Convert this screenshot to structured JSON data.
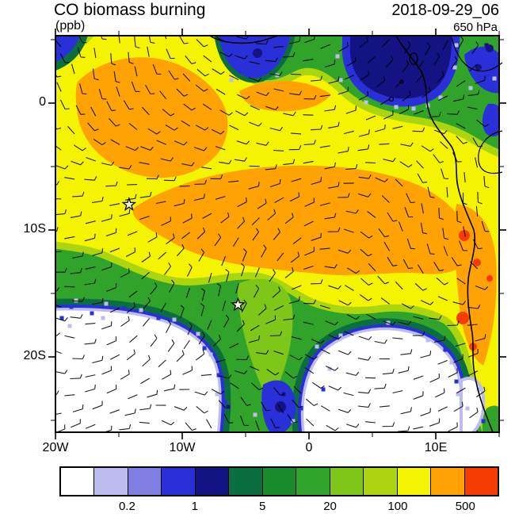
{
  "header": {
    "title": "CO biomass burning",
    "units": "(ppb)",
    "datetime": "2018-09-29_06",
    "level": "650 hPa"
  },
  "axes": {
    "x_ticks": [
      {
        "label": "20W",
        "lon": -20
      },
      {
        "label": "10W",
        "lon": -10
      },
      {
        "label": "0",
        "lon": 0
      },
      {
        "label": "10E",
        "lon": 10
      }
    ],
    "y_ticks": [
      {
        "label": "0",
        "lat": 0
      },
      {
        "label": "10S",
        "lat": -10
      },
      {
        "label": "20S",
        "lat": -20
      }
    ]
  },
  "colorbar": {
    "colors": [
      "#ffffff",
      "#bcbcee",
      "#7d7de2",
      "#2a30d8",
      "#131384",
      "#0b6e3f",
      "#188c2a",
      "#2fa32a",
      "#7ec718",
      "#abd60f",
      "#f4f402",
      "#ffa305",
      "#f53c02"
    ],
    "levels": [
      0.1,
      0.2,
      0.5,
      1,
      2,
      5,
      10,
      20,
      50,
      100,
      200,
      500
    ],
    "tick_labels": [
      "0.2",
      "1",
      "5",
      "20",
      "100",
      "500"
    ]
  },
  "chart_data": {
    "type": "heatmap",
    "title": "CO biomass burning",
    "units": "ppb",
    "pressure_level": "650 hPa",
    "valid_time": "2018-09-29_06",
    "x_axis": {
      "tick_labels": [
        "20W",
        "10W",
        "0",
        "10E"
      ],
      "lon_range_deg": [
        -20,
        15
      ]
    },
    "y_axis": {
      "tick_labels": [
        "0",
        "10S",
        "20S"
      ],
      "lat_range_deg": [
        5.3,
        -25.9
      ]
    },
    "contour_levels_ppb": [
      0.1,
      0.2,
      0.5,
      1,
      2,
      5,
      10,
      20,
      50,
      100,
      200,
      500
    ],
    "palette": [
      "#ffffff",
      "#bcbcee",
      "#7d7de2",
      "#2a30d8",
      "#131384",
      "#0b6e3f",
      "#188c2a",
      "#2fa32a",
      "#7ec718",
      "#abd60f",
      "#f4f402",
      "#ffa305",
      "#f53c02"
    ],
    "overlay": "wind barbs",
    "markers": [
      {
        "symbol": "star",
        "lon_deg": -14.2,
        "lat_deg": -8.0
      },
      {
        "symbol": "star",
        "lon_deg": -5.6,
        "lat_deg": -15.9
      }
    ],
    "features": [
      {
        "region": "northwest Atlantic quadrant 15W-5W, 3N-6S",
        "value_ppb": "100-500",
        "appearance": "orange core inside broad yellow field"
      },
      {
        "region": "central plume 14W-9E, 2S-13S reaching Angola coast",
        "value_ppb": "200-500",
        "appearance": "elongated orange band"
      },
      {
        "region": "Gulf of Guinea near 6E-12E, 0-5N",
        "value_ppb": "0.2-2",
        "appearance": "dark blue/navy minimum with blue fringe"
      },
      {
        "region": "top-centre near Ivory Coast/Ghana coast",
        "value_ppb": "0.5-2",
        "appearance": "small blue wedge"
      },
      {
        "region": "southwest ocean south of ~17S",
        "value_ppb": "<0.1",
        "appearance": "white with lavender/blue speckled rim and dark-green band"
      },
      {
        "region": "south-central ocean 0-8E south of ~18S",
        "value_ppb": "<0.1",
        "appearance": "white with blue fringe"
      },
      {
        "region": "green tongue near 4W-1E from 12S to 26S",
        "value_ppb": "2-20",
        "appearance": "green with dark-green edges and blue/navy at its southern tip"
      },
      {
        "region": "Angola coastal spots 8S-13S and 15S-19S",
        "value_ppb": ">500",
        "appearance": "small red patches over orange coastal strip"
      }
    ]
  }
}
